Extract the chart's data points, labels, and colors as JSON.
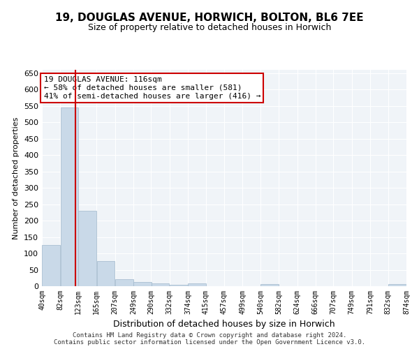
{
  "title1": "19, DOUGLAS AVENUE, HORWICH, BOLTON, BL6 7EE",
  "title2": "Size of property relative to detached houses in Horwich",
  "xlabel": "Distribution of detached houses by size in Horwich",
  "ylabel": "Number of detached properties",
  "footer1": "Contains HM Land Registry data © Crown copyright and database right 2024.",
  "footer2": "Contains public sector information licensed under the Open Government Licence v3.0.",
  "annotation_line1": "19 DOUGLAS AVENUE: 116sqm",
  "annotation_line2": "← 58% of detached houses are smaller (581)",
  "annotation_line3": "41% of semi-detached houses are larger (416) →",
  "property_size": 116,
  "bar_color": "#c9d9e8",
  "bar_edge_color": "#a0b8cc",
  "line_color": "#cc0000",
  "bins": [
    40,
    82,
    123,
    165,
    207,
    249,
    290,
    332,
    374,
    415,
    457,
    499,
    540,
    582,
    624,
    666,
    707,
    749,
    791,
    832,
    874
  ],
  "bar_heights": [
    125,
    545,
    230,
    77,
    22,
    12,
    8,
    5,
    8,
    0,
    0,
    0,
    6,
    0,
    0,
    0,
    0,
    0,
    0,
    6
  ],
  "ylim": [
    0,
    660
  ],
  "yticks": [
    0,
    50,
    100,
    150,
    200,
    250,
    300,
    350,
    400,
    450,
    500,
    550,
    600,
    650
  ],
  "bg_color": "#f0f4f8",
  "grid_color": "#ffffff",
  "tick_labels": [
    "40sqm",
    "82sqm",
    "123sqm",
    "165sqm",
    "207sqm",
    "249sqm",
    "290sqm",
    "332sqm",
    "374sqm",
    "415sqm",
    "457sqm",
    "499sqm",
    "540sqm",
    "582sqm",
    "624sqm",
    "666sqm",
    "707sqm",
    "749sqm",
    "791sqm",
    "832sqm",
    "874sqm"
  ]
}
